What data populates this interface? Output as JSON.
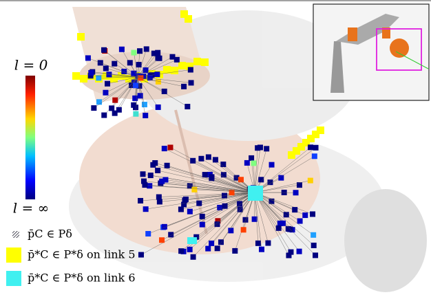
{
  "colorbar": {
    "top_label": "l = 0",
    "bottom_label": "l = ∞"
  },
  "legend": {
    "items": [
      {
        "label": "p̄C ∈ Pδ"
      },
      {
        "label": "p̄*C ∈ P*δ on link 5"
      },
      {
        "label": "p̄*C ∈ P*δ on link 6"
      }
    ]
  }
}
